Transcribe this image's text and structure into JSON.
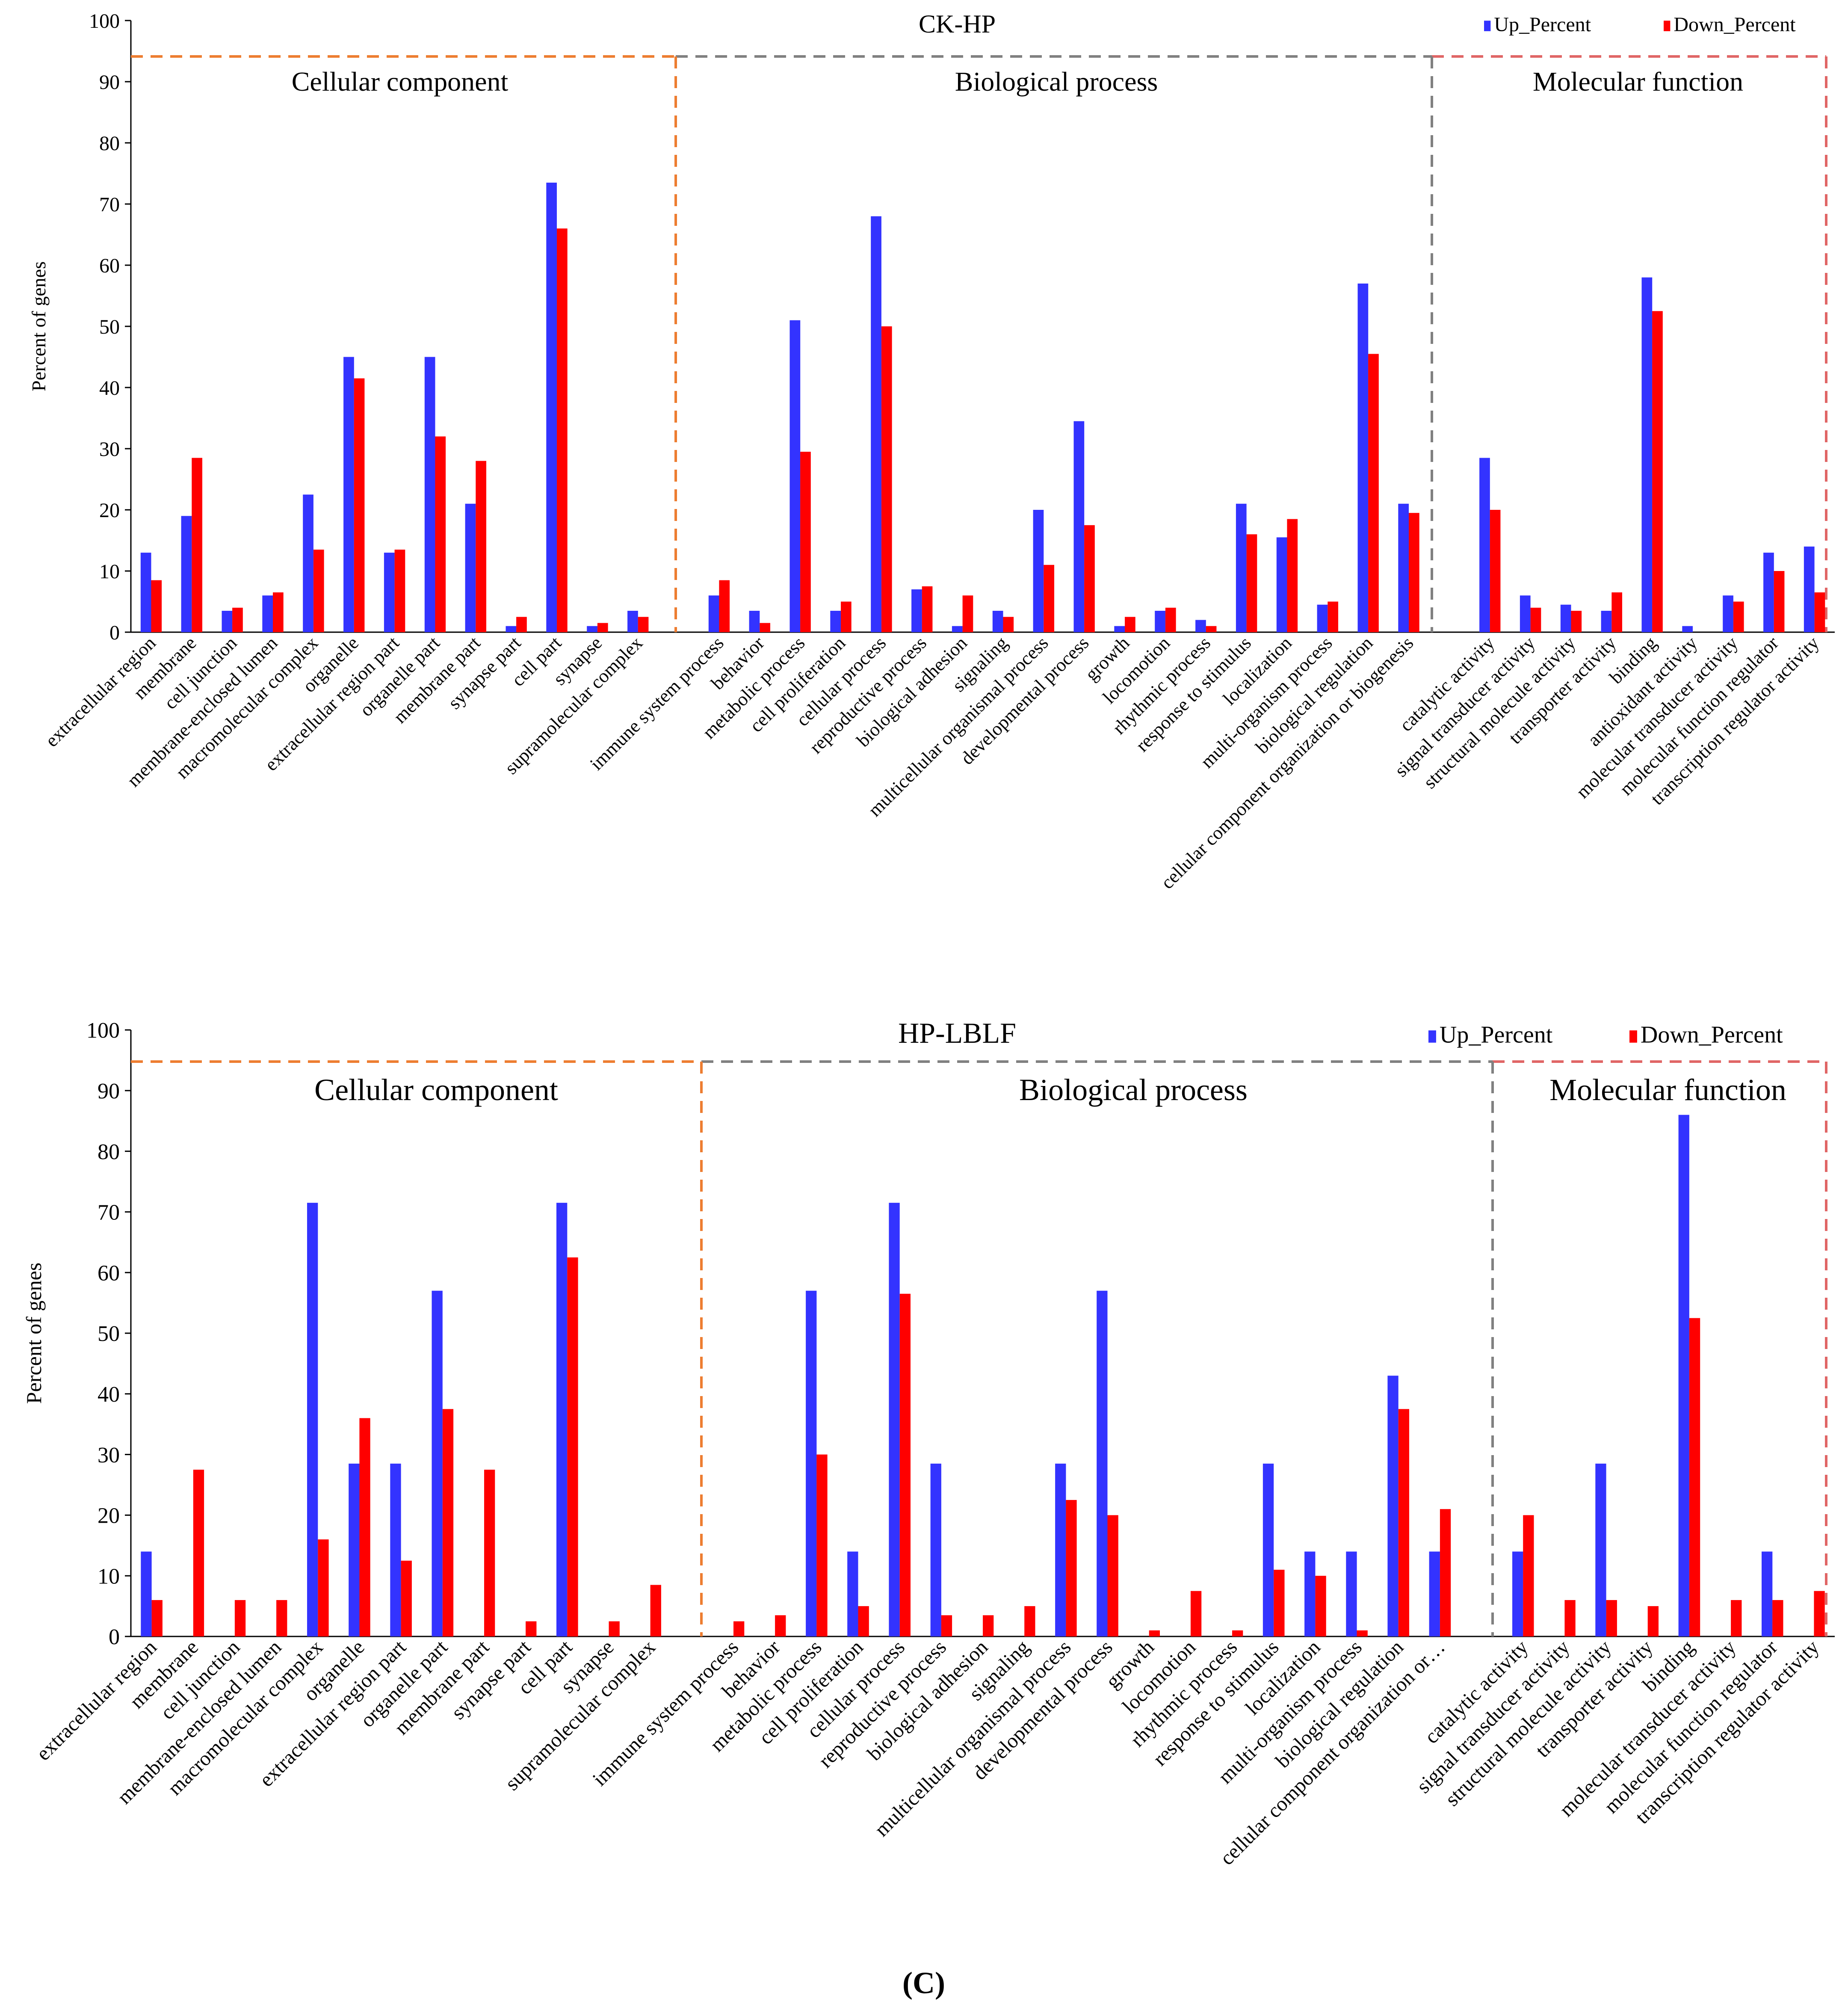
{
  "figure_label": "(C)",
  "colors": {
    "up": "#3333ff",
    "down": "#ff0000",
    "cellular": "#ed7d31",
    "biological": "#808080",
    "molecular": "#e06666"
  },
  "chart_data": [
    {
      "type": "bar",
      "title": "CK-HP",
      "ylabel": "Percent of genes",
      "xlabel": "",
      "ylim": [
        0,
        100
      ],
      "yticks": [
        0,
        10,
        20,
        30,
        40,
        50,
        60,
        70,
        80,
        90,
        100
      ],
      "grid": false,
      "legend": "top-right",
      "sections": [
        "Cellular component",
        "Biological process",
        "Molecular function"
      ],
      "categories": [
        "extracellular region",
        "membrane",
        "cell junction",
        "membrane-enclosed lumen",
        "macromolecular complex",
        "organelle",
        "extracellular region part",
        "organelle part",
        "membrane part",
        "synapse part",
        "cell part",
        "synapse",
        "supramolecular complex",
        "",
        "immune system process",
        "behavior",
        "metabolic process",
        "cell proliferation",
        "cellular process",
        "reproductive process",
        "biological adhesion",
        "signaling",
        "multicellular organismal process",
        "developmental process",
        "growth",
        "locomotion",
        "rhythmic process",
        "response to stimulus",
        "localization",
        "multi-organism process",
        "biological regulation",
        "cellular component organization or biogenesis",
        "",
        "catalytic activity",
        "signal transducer activity",
        "structural molecule activity",
        "transporter activity",
        "binding",
        "antioxidant activity",
        "molecular transducer activity",
        "molecular function regulator",
        "transcription regulator activity"
      ],
      "series": [
        {
          "name": "Up_Percent",
          "values": [
            13,
            19,
            3.5,
            6,
            22.5,
            45,
            13,
            45,
            21,
            1,
            73.5,
            1,
            3.5,
            null,
            6,
            3.5,
            51,
            3.5,
            68,
            7,
            1,
            3.5,
            20,
            34.5,
            1,
            3.5,
            2,
            21,
            15.5,
            4.5,
            57,
            21,
            null,
            28.5,
            6,
            4.5,
            3.5,
            58,
            1,
            6,
            13,
            14
          ]
        },
        {
          "name": "Down_Percent",
          "values": [
            8.5,
            28.5,
            4,
            6.5,
            13.5,
            41.5,
            13.5,
            32,
            28,
            2.5,
            66,
            1.5,
            2.5,
            null,
            8.5,
            1.5,
            29.5,
            5,
            50,
            7.5,
            6,
            2.5,
            11,
            17.5,
            2.5,
            4,
            1,
            16,
            18.5,
            5,
            45.5,
            19.5,
            null,
            20,
            4,
            3.5,
            6.5,
            52.5,
            0,
            5,
            10,
            6.5
          ]
        }
      ]
    },
    {
      "type": "bar",
      "title": "HP-LBLF",
      "ylabel": "Percent of genes",
      "xlabel": "",
      "ylim": [
        0,
        100
      ],
      "yticks": [
        0,
        10,
        20,
        30,
        40,
        50,
        60,
        70,
        80,
        90,
        100
      ],
      "grid": false,
      "legend": "top-right",
      "sections": [
        "Cellular component",
        "Biological process",
        "Molecular function"
      ],
      "categories": [
        "extracellular region",
        "membrane",
        "cell junction",
        "membrane-enclosed lumen",
        "macromolecular complex",
        "organelle",
        "extracellular region part",
        "organelle part",
        "membrane part",
        "synapse part",
        "cell part",
        "synapse",
        "supramolecular complex",
        "",
        "immune system process",
        "behavior",
        "metabolic process",
        "cell proliferation",
        "cellular process",
        "reproductive process",
        "biological adhesion",
        "signaling",
        "multicellular organismal process",
        "developmental process",
        "growth",
        "locomotion",
        "rhythmic process",
        "response to stimulus",
        "localization",
        "multi-organism process",
        "biological regulation",
        "cellular component organization or…",
        "",
        "catalytic activity",
        "signal transducer activity",
        "structural molecule activity",
        "transporter activity",
        "binding",
        "molecular transducer activity",
        "molecular function regulator",
        "transcription regulator activity"
      ],
      "series": [
        {
          "name": "Up_Percent",
          "values": [
            14,
            0,
            0,
            0,
            71.5,
            28.5,
            28.5,
            57,
            0,
            0,
            71.5,
            0,
            0,
            null,
            0,
            0,
            57,
            14,
            71.5,
            28.5,
            0,
            0,
            28.5,
            57,
            0,
            0,
            0,
            28.5,
            14,
            14,
            43,
            14,
            null,
            14,
            0,
            28.5,
            0,
            86,
            0,
            14,
            0
          ]
        },
        {
          "name": "Down_Percent",
          "values": [
            6,
            27.5,
            6,
            6,
            16,
            36,
            12.5,
            37.5,
            27.5,
            2.5,
            62.5,
            2.5,
            8.5,
            null,
            2.5,
            3.5,
            30,
            5,
            56.5,
            3.5,
            3.5,
            5,
            22.5,
            20,
            1,
            7.5,
            1,
            11,
            10,
            1,
            37.5,
            21,
            null,
            20,
            6,
            6,
            5,
            52.5,
            6,
            6,
            7.5
          ]
        }
      ]
    }
  ]
}
